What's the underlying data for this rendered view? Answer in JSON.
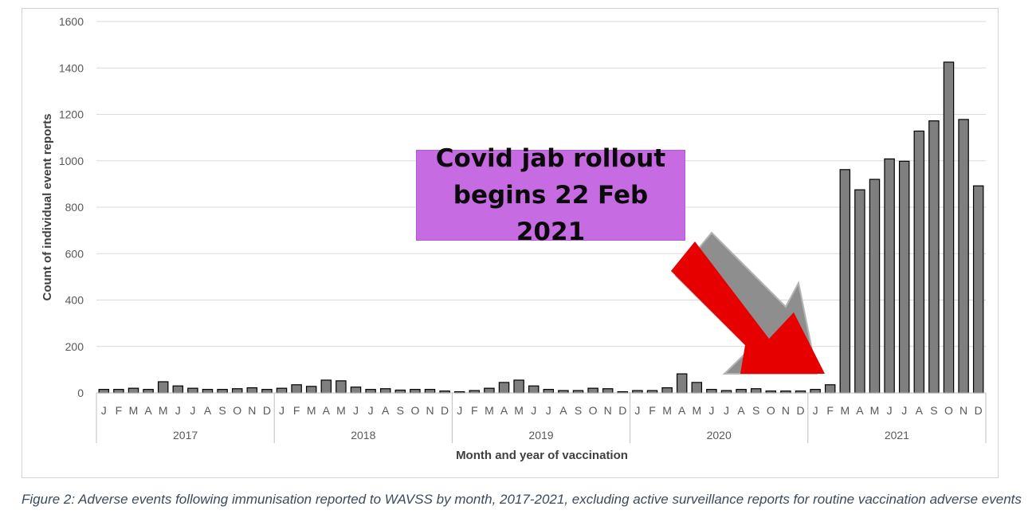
{
  "chart_data": {
    "type": "bar",
    "ylabel": "Count of individual event reports",
    "xlabel": "Month and year of vaccination",
    "ylim": [
      0,
      1600
    ],
    "yticks": [
      0,
      200,
      400,
      600,
      800,
      1000,
      1200,
      1400,
      1600
    ],
    "grid": true,
    "bar_color": "#7f7f7f",
    "years": [
      "2017",
      "2018",
      "2019",
      "2020",
      "2021"
    ],
    "month_labels": [
      "J",
      "F",
      "M",
      "A",
      "M",
      "J",
      "J",
      "A",
      "S",
      "O",
      "N",
      "D"
    ],
    "series": [
      {
        "values": [
          15,
          15,
          20,
          15,
          48,
          30,
          20,
          15,
          15,
          18,
          22,
          15,
          20,
          35,
          28,
          55,
          52,
          25,
          15,
          18,
          12,
          15,
          15,
          8,
          5,
          10,
          20,
          45,
          55,
          30,
          15,
          10,
          10,
          20,
          18,
          5,
          10,
          10,
          22,
          82,
          45,
          15,
          10,
          15,
          18,
          8,
          8,
          8,
          15,
          35,
          962,
          875,
          920,
          1008,
          998,
          1128,
          1172,
          1425,
          1178,
          892
        ]
      }
    ]
  },
  "annotation": {
    "line1": "Covid jab rollout",
    "line2": "begins 22 Feb 2021",
    "arrow_color": "#e60000"
  },
  "caption": "Figure 2: Adverse events following immunisation reported to WAVSS by month, 2017-2021, excluding active surveillance reports for routine vaccination adverse events"
}
